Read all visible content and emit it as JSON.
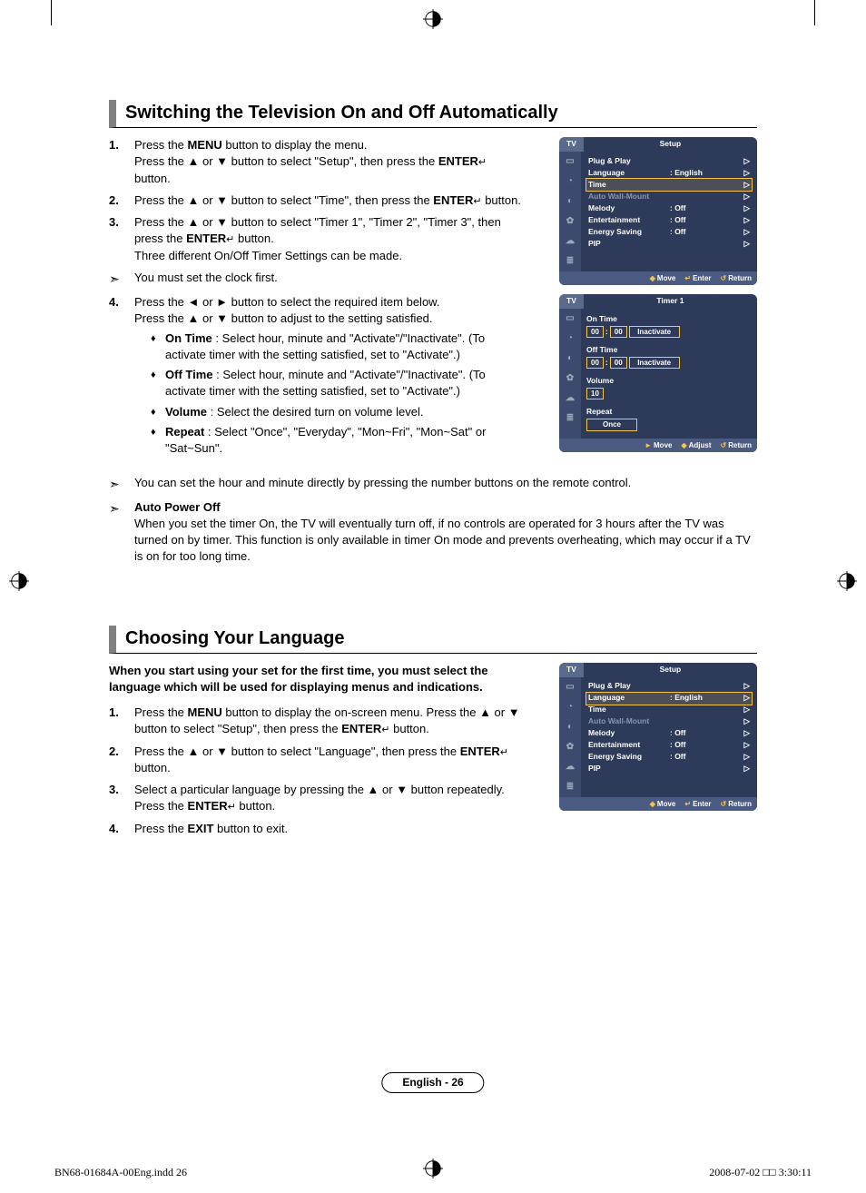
{
  "page": {
    "number_label": "English - 26",
    "print_left": "BN68-01684A-00Eng.indd   26",
    "print_right": "2008-07-02   □□ 3:30:11"
  },
  "glyphs": {
    "up": "▲",
    "down": "▼",
    "left": "◄",
    "right": "►",
    "diamond": "♦",
    "note": "➣",
    "enter": "↵",
    "tri": "▷"
  },
  "section1": {
    "title": "Switching the Television On and Off Automatically",
    "steps": [
      {
        "n": "1.",
        "lines": [
          "Press the <b>MENU</b> button to display the menu.",
          "Press the ▲ or ▼ button to select \"Setup\", then press the <b>ENTER</b><span class='enter-glyph'>↵</span> button."
        ]
      },
      {
        "n": "2.",
        "lines": [
          "Press the ▲ or ▼ button to select \"Time\", then press the <b>ENTER</b><span class='enter-glyph'>↵</span> button."
        ]
      },
      {
        "n": "3.",
        "lines": [
          "Press the ▲ or ▼ button to select \"Timer 1\", \"Timer 2\", \"Timer 3\", then press the <b>ENTER</b><span class='enter-glyph'>↵</span> button.",
          "Three different On/Off Timer Settings can be made."
        ]
      }
    ],
    "note1": "You must set the clock first.",
    "step4_intro": [
      "Press the ◄ or ► button to select the required item below.",
      "Press the ▲ or ▼ button to adjust to the setting satisfied."
    ],
    "step4_n": "4.",
    "bullets": [
      {
        "label": "On Time",
        "text": " : Select hour, minute and \"Activate\"/\"Inactivate\". (To activate timer with the setting satisfied, set to \"Activate\".)"
      },
      {
        "label": "Off Time",
        "text": " : Select hour, minute and \"Activate\"/\"Inactivate\". (To activate timer with the setting satisfied, set to \"Activate\".)"
      },
      {
        "label": "Volume",
        "text": " : Select the desired turn on volume level."
      },
      {
        "label": "Repeat",
        "text": " : Select \"Once\", \"Everyday\", \"Mon~Fri\", \"Mon~Sat\" or \"Sat~Sun\"."
      }
    ],
    "note2": "You can set the hour and minute directly by pressing the number buttons on the remote control.",
    "note3_label": "Auto Power Off",
    "note3_text": "When you set the timer On, the TV will eventually turn off, if no controls are operated for 3 hours after the TV was turned on by timer. This function is only available in timer On mode and prevents overheating, which may occur if a TV is on for too long time."
  },
  "section2": {
    "title": "Choosing Your Language",
    "intro": "When you start using your set for the first time, you must select the language which will be used for displaying menus and indications.",
    "steps": [
      {
        "n": "1.",
        "lines": [
          "Press the <b>MENU</b> button to display the on-screen menu. Press the ▲ or ▼ button to select \"Setup\", then press the <b>ENTER</b><span class='enter-glyph'>↵</span> button."
        ]
      },
      {
        "n": "2.",
        "lines": [
          "Press the ▲ or ▼ button to select \"Language\", then press the <b>ENTER</b><span class='enter-glyph'>↵</span> button."
        ]
      },
      {
        "n": "3.",
        "lines": [
          "Select a particular language by pressing the ▲ or ▼ button repeatedly.",
          "Press the <b>ENTER</b><span class='enter-glyph'>↵</span> button."
        ]
      },
      {
        "n": "4.",
        "lines": [
          "Press the <b>EXIT</b> button to exit."
        ]
      }
    ]
  },
  "osd_setup": {
    "tab": "TV",
    "title": "Setup",
    "rows": [
      {
        "lbl": "Plug & Play",
        "val": "",
        "arr": true
      },
      {
        "lbl": "Language",
        "val": ": English",
        "arr": true
      },
      {
        "lbl": "Time",
        "val": "",
        "arr": true,
        "hl": "time"
      },
      {
        "lbl": "Auto Wall-Mount",
        "val": "",
        "arr": true,
        "dim": true
      },
      {
        "lbl": "Melody",
        "val": ": Off",
        "arr": true
      },
      {
        "lbl": "Entertainment",
        "val": ": Off",
        "arr": true
      },
      {
        "lbl": "Energy Saving",
        "val": ": Off",
        "arr": true
      },
      {
        "lbl": "PIP",
        "val": "",
        "arr": true
      }
    ],
    "foot": [
      {
        "g": "◆",
        "t": "Move"
      },
      {
        "g": "↵",
        "t": "Enter"
      },
      {
        "g": "↺",
        "t": "Return"
      }
    ]
  },
  "osd_timer": {
    "tab": "TV",
    "title": "Timer 1",
    "on_label": "On Time",
    "off_label": "Off Time",
    "vol_label": "Volume",
    "rep_label": "Repeat",
    "hh": "00",
    "mm": "00",
    "state": "Inactivate",
    "vol": "10",
    "rep": "Once",
    "foot": [
      {
        "g": "►",
        "t": "Move"
      },
      {
        "g": "◆",
        "t": "Adjust"
      },
      {
        "g": "↺",
        "t": "Return"
      }
    ]
  },
  "osd_sidebar_icons": [
    "▭",
    "◔",
    "◐",
    "✿",
    "☁",
    "≣"
  ]
}
